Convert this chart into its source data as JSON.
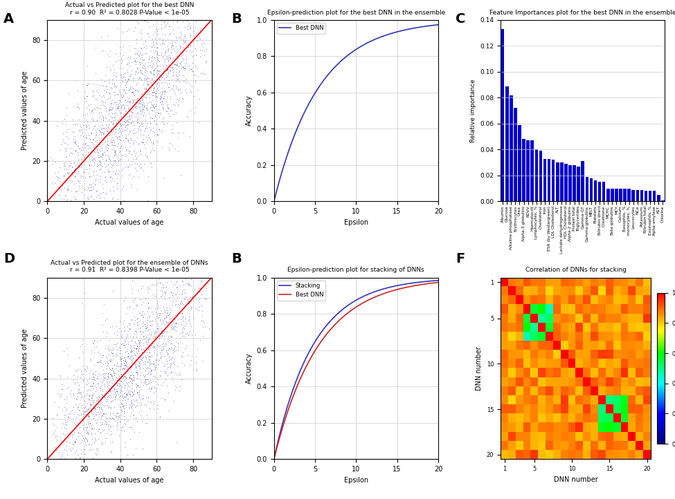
{
  "panel_A": {
    "title": "Actual vs Predicted plot for the best DNN",
    "subtitle": "r = 0.90  R² = 0.8028 P-Value < 1e-05",
    "xlabel": "Actual values of age",
    "ylabel": "Predicted values of age",
    "xlim": [
      0,
      90
    ],
    "ylim": [
      0,
      90
    ],
    "scatter_color": "#00008B",
    "line_color": "red",
    "n_points": 2000,
    "seed": 42,
    "r": 0.9,
    "label": "A"
  },
  "panel_B_top": {
    "title": "Epsilon-prediction plot for the best DNN in the ensemble",
    "xlabel": "Epsilon",
    "ylabel": "Accuracy",
    "xlim": [
      0,
      20
    ],
    "ylim": [
      0.0,
      1.0
    ],
    "line_color": "#3333bb",
    "legend_label": "Best DNN",
    "rmse": 5.5,
    "label": "B"
  },
  "panel_C": {
    "title": "Feature Importances plot for the best DNN in the ensemble",
    "xlabel": "Feature",
    "ylabel": "Relative importance",
    "ylim": [
      0,
      0.14
    ],
    "bar_color": "#0000cc",
    "features": [
      "Albumin",
      "Glucose",
      "Alkaline phosphatase",
      "Erythrocytes",
      "Urea",
      "Alpha-3 globulins",
      "RDVV",
      "Haematocrit",
      "Lymphocytes, %",
      "Cholesterol",
      "Iron",
      "ESR (by Westergreen)",
      "LDL Cholesterol",
      "ALT",
      "Lactate dehydrogenase",
      "HDL Cholesterol",
      "Alpha-2 globulins",
      "Protein total",
      "Triglycerides",
      "Gamma-GT",
      "Gamma-globulins",
      "MELT",
      "Platelets",
      "Bilirubin direct",
      "Creatinine",
      "MCHC",
      "Beta-globulins",
      "MCY",
      "Calcium",
      "Basophils, %",
      "monocytes, %",
      "Leucocytes",
      "NCa",
      "Potassium",
      "Bilirubin total",
      "Eosinophils, %",
      "Alpha-amylase",
      "AST",
      "Chlorine"
    ],
    "importances": [
      0.133,
      0.089,
      0.082,
      0.072,
      0.059,
      0.048,
      0.047,
      0.047,
      0.04,
      0.039,
      0.033,
      0.033,
      0.032,
      0.03,
      0.03,
      0.029,
      0.028,
      0.028,
      0.027,
      0.031,
      0.019,
      0.018,
      0.016,
      0.015,
      0.015,
      0.01,
      0.01,
      0.01,
      0.01,
      0.01,
      0.01,
      0.009,
      0.009,
      0.009,
      0.008,
      0.008,
      0.008,
      0.005,
      0.001
    ],
    "label": "C"
  },
  "panel_D": {
    "title": "Actual vs Predicted plot for the ensemble of DNNs",
    "subtitle": "r = 0.91  R² = 0.8398 P-Value < 1e-05",
    "xlabel": "Actual values of age",
    "ylabel": "Predicted values of age",
    "xlim": [
      0,
      90
    ],
    "ylim": [
      0,
      90
    ],
    "scatter_color": "#00008B",
    "line_color": "red",
    "n_points": 2000,
    "seed": 77,
    "r": 0.915,
    "label": "D"
  },
  "panel_B_bottom": {
    "title": "Epsilon-prediction plot for stacking of DNNs",
    "xlabel": "Epsilon",
    "ylabel": "Accuracy",
    "xlim": [
      0,
      20
    ],
    "ylim": [
      0.0,
      1.0
    ],
    "stacking_color": "#3333bb",
    "best_dnn_color": "#cc2222",
    "stacking_rmse": 4.8,
    "best_rmse": 5.5,
    "legend_stacking": "Stacking",
    "legend_best": "Best DNN",
    "label": "B"
  },
  "panel_F": {
    "title": "Correlation of DNNs for stacking",
    "xlabel": "DNN number",
    "ylabel": "DNN number",
    "n_dnns": 20,
    "label": "F"
  },
  "background_color": "#ffffff"
}
